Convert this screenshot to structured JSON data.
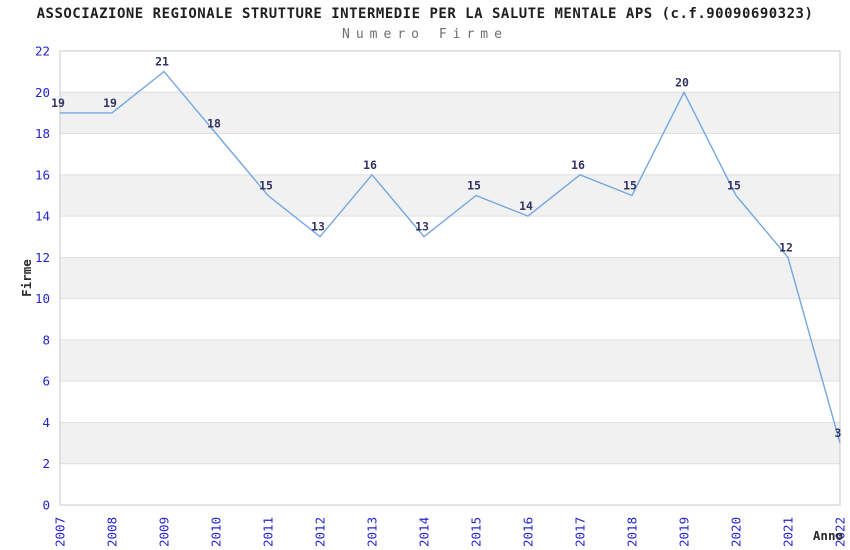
{
  "header": {
    "title": "ASSOCIAZIONE REGIONALE STRUTTURE INTERMEDIE PER LA SALUTE MENTALE APS (c.f.90090690323)",
    "subtitle": "Numero Firme"
  },
  "chart_data": {
    "type": "line",
    "title": "ASSOCIAZIONE REGIONALE STRUTTURE INTERMEDIE PER LA SALUTE MENTALE APS (c.f.90090690323)",
    "subtitle": "Numero Firme",
    "categories": [
      "2007",
      "2008",
      "2009",
      "2010",
      "2011",
      "2012",
      "2013",
      "2014",
      "2015",
      "2016",
      "2017",
      "2018",
      "2019",
      "2020",
      "2021",
      "2022"
    ],
    "values": [
      19,
      19,
      21,
      18,
      15,
      13,
      16,
      13,
      15,
      14,
      16,
      15,
      20,
      15,
      12,
      3
    ],
    "data_labels": [
      "19",
      "19",
      "21",
      "18",
      "15",
      "13",
      "16",
      "13",
      "15",
      "14",
      "16",
      "15",
      "20",
      "15",
      "12",
      "3"
    ],
    "xlabel": "Anno",
    "ylabel": "Firme",
    "ylim": [
      0,
      22
    ],
    "ytick_step": 2,
    "yticks": [
      "0",
      "2",
      "4",
      "6",
      "8",
      "10",
      "12",
      "14",
      "16",
      "18",
      "20",
      "22"
    ],
    "grid": "horizontal-bands-alternating",
    "legend": "none",
    "colors": {
      "line": "#74a7e0",
      "tick_label": "#2424cf",
      "data_label": "#333366",
      "band_gray": "#f1f1f1",
      "gridline": "#e0e0e0",
      "plot_border": "#c8c8c8",
      "axis_title": "#2b2b2b",
      "title": "#1f1f1f",
      "subtitle": "#6e6e6e"
    }
  }
}
